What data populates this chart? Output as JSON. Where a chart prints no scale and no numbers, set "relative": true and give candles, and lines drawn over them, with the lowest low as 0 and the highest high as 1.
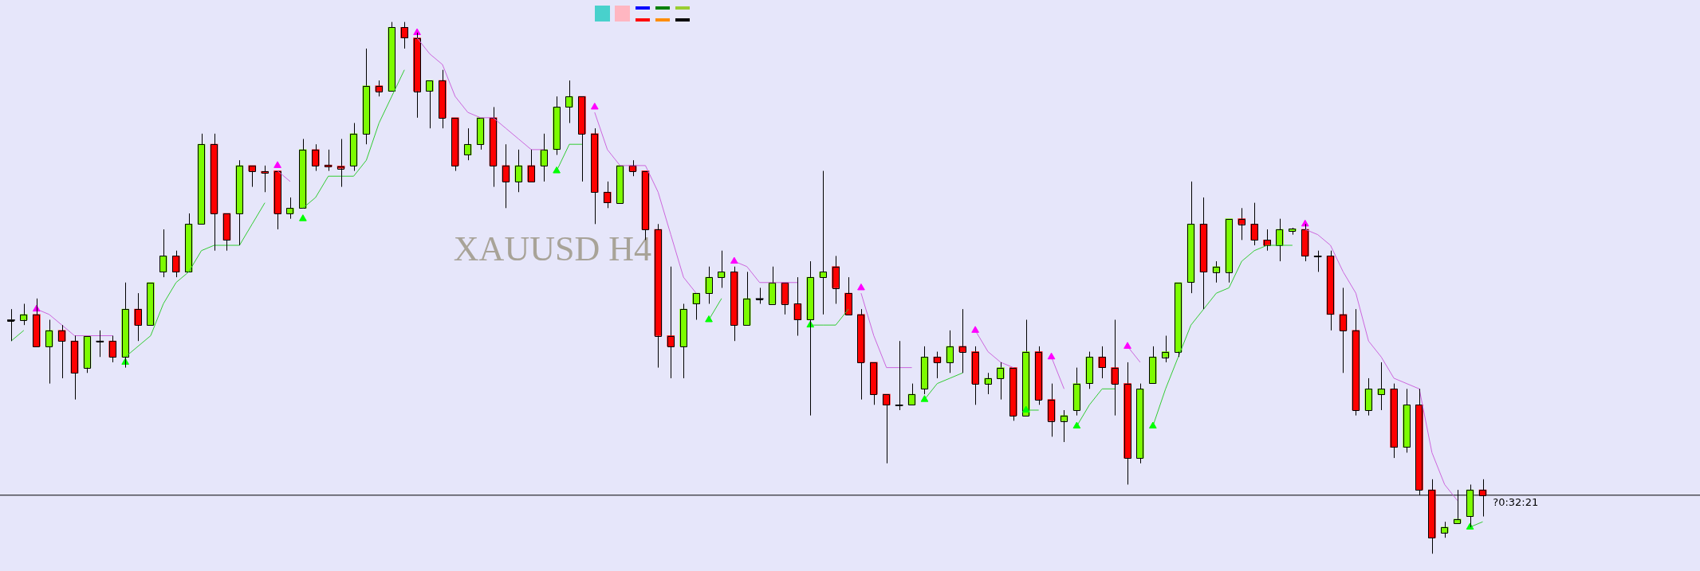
{
  "chart_data": {
    "type": "candlestick",
    "title": "XAUUSD H4",
    "relative": true,
    "categories": [
      null,
      null,
      null,
      null,
      null,
      null,
      null,
      null,
      null,
      null,
      null,
      null,
      null,
      null,
      null,
      null,
      null,
      null,
      null,
      null,
      null,
      null,
      null,
      null,
      null,
      null,
      null,
      null,
      null,
      null,
      null,
      null,
      null,
      null,
      null,
      null,
      null,
      null,
      null,
      null,
      null,
      null,
      null,
      null,
      null,
      null,
      null,
      null,
      null,
      null,
      null,
      null,
      null,
      null,
      null,
      null,
      null,
      null,
      null,
      null,
      null,
      null,
      null,
      null,
      null,
      null,
      null,
      null,
      null,
      null,
      null,
      null,
      null,
      null,
      null,
      null,
      null,
      null,
      null,
      null,
      null,
      null,
      null,
      null,
      null,
      null,
      null,
      null,
      null,
      null,
      null,
      null,
      null,
      null,
      null,
      null,
      null,
      null,
      null,
      null,
      null,
      null,
      null,
      null,
      null,
      null,
      null,
      null,
      null,
      null,
      null,
      null,
      null,
      null,
      null,
      null,
      null
    ],
    "ohlc": [
      [
        0.44,
        0.46,
        0.4,
        0.44
      ],
      [
        0.44,
        0.47,
        0.43,
        0.45
      ],
      [
        0.45,
        0.48,
        0.39,
        0.39
      ],
      [
        0.39,
        0.44,
        0.32,
        0.42
      ],
      [
        0.42,
        0.43,
        0.33,
        0.4
      ],
      [
        0.4,
        0.41,
        0.29,
        0.34
      ],
      [
        0.35,
        0.41,
        0.34,
        0.41
      ],
      [
        0.4,
        0.42,
        0.37,
        0.4
      ],
      [
        0.4,
        0.41,
        0.36,
        0.37
      ],
      [
        0.37,
        0.51,
        0.35,
        0.46
      ],
      [
        0.46,
        0.49,
        0.4,
        0.43
      ],
      [
        0.43,
        0.51,
        0.43,
        0.51
      ],
      [
        0.53,
        0.61,
        0.52,
        0.56
      ],
      [
        0.56,
        0.57,
        0.52,
        0.53
      ],
      [
        0.53,
        0.64,
        0.53,
        0.62
      ],
      [
        0.62,
        0.79,
        0.62,
        0.77
      ],
      [
        0.77,
        0.79,
        0.57,
        0.64
      ],
      [
        0.64,
        0.64,
        0.57,
        0.59
      ],
      [
        0.64,
        0.74,
        0.58,
        0.73
      ],
      [
        0.73,
        0.73,
        0.69,
        0.72
      ],
      [
        0.719,
        0.73,
        0.68,
        0.716
      ],
      [
        0.72,
        0.72,
        0.61,
        0.64
      ],
      [
        0.64,
        0.67,
        0.63,
        0.65
      ],
      [
        0.65,
        0.78,
        0.65,
        0.76
      ],
      [
        0.76,
        0.77,
        0.72,
        0.73
      ],
      [
        0.731,
        0.76,
        0.72,
        0.728
      ],
      [
        0.729,
        0.78,
        0.69,
        0.725
      ],
      [
        0.73,
        0.81,
        0.72,
        0.79
      ],
      [
        0.79,
        0.95,
        0.77,
        0.88
      ],
      [
        0.88,
        0.89,
        0.86,
        0.87
      ],
      [
        0.87,
        1,
        0.87,
        0.99
      ],
      [
        0.99,
        1,
        0.95,
        0.97
      ],
      [
        0.97,
        0.98,
        0.82,
        0.87
      ],
      [
        0.87,
        0.89,
        0.8,
        0.89
      ],
      [
        0.89,
        0.91,
        0.8,
        0.82
      ],
      [
        0.82,
        0.82,
        0.72,
        0.73
      ],
      [
        0.75,
        0.8,
        0.74,
        0.77
      ],
      [
        0.77,
        0.82,
        0.76,
        0.82
      ],
      [
        0.82,
        0.84,
        0.69,
        0.73
      ],
      [
        0.73,
        0.77,
        0.65,
        0.7
      ],
      [
        0.7,
        0.76,
        0.68,
        0.73
      ],
      [
        0.73,
        0.76,
        0.7,
        0.7
      ],
      [
        0.73,
        0.79,
        0.7,
        0.76
      ],
      [
        0.76,
        0.86,
        0.75,
        0.84
      ],
      [
        0.84,
        0.89,
        0.81,
        0.86
      ],
      [
        0.86,
        0.86,
        0.7,
        0.79
      ],
      [
        0.79,
        0.8,
        0.62,
        0.68
      ],
      [
        0.68,
        0.7,
        0.65,
        0.66
      ],
      [
        0.66,
        0.73,
        0.66,
        0.73
      ],
      [
        0.73,
        0.74,
        0.71,
        0.72
      ],
      [
        0.72,
        0.72,
        0.59,
        0.61
      ],
      [
        0.61,
        0.62,
        0.35,
        0.41
      ],
      [
        0.41,
        0.54,
        0.33,
        0.39
      ],
      [
        0.39,
        0.47,
        0.33,
        0.46
      ],
      [
        0.47,
        0.49,
        0.44,
        0.49
      ],
      [
        0.49,
        0.54,
        0.47,
        0.52
      ],
      [
        0.52,
        0.57,
        0.5,
        0.53
      ],
      [
        0.53,
        0.54,
        0.4,
        0.43
      ],
      [
        0.43,
        0.53,
        0.43,
        0.48
      ],
      [
        0.48,
        0.5,
        0.47,
        0.48
      ],
      [
        0.47,
        0.54,
        0.47,
        0.51
      ],
      [
        0.51,
        0.51,
        0.45,
        0.47
      ],
      [
        0.47,
        0.52,
        0.41,
        0.44
      ],
      [
        0.44,
        0.55,
        0.26,
        0.52
      ],
      [
        0.52,
        0.72,
        0.45,
        0.53
      ],
      [
        0.54,
        0.56,
        0.47,
        0.5
      ],
      [
        0.49,
        0.52,
        0.45,
        0.45
      ],
      [
        0.45,
        0.46,
        0.29,
        0.36
      ],
      [
        0.36,
        0.36,
        0.28,
        0.3
      ],
      [
        0.3,
        0.3,
        0.17,
        0.28
      ],
      [
        0.28,
        0.4,
        0.27,
        0.28
      ],
      [
        0.28,
        0.32,
        0.28,
        0.3
      ],
      [
        0.31,
        0.39,
        0.3,
        0.37
      ],
      [
        0.37,
        0.38,
        0.33,
        0.36
      ],
      [
        0.36,
        0.42,
        0.34,
        0.39
      ],
      [
        0.39,
        0.46,
        0.34,
        0.38
      ],
      [
        0.38,
        0.39,
        0.28,
        0.32
      ],
      [
        0.32,
        0.34,
        0.3,
        0.33
      ],
      [
        0.33,
        0.36,
        0.29,
        0.35
      ],
      [
        0.35,
        0.35,
        0.25,
        0.26
      ],
      [
        0.26,
        0.44,
        0.26,
        0.38
      ],
      [
        0.38,
        0.39,
        0.28,
        0.29
      ],
      [
        0.29,
        0.32,
        0.22,
        0.25
      ],
      [
        0.25,
        0.27,
        0.21,
        0.26
      ],
      [
        0.27,
        0.35,
        0.26,
        0.32
      ],
      [
        0.32,
        0.38,
        0.31,
        0.37
      ],
      [
        0.37,
        0.39,
        0.33,
        0.35
      ],
      [
        0.35,
        0.44,
        0.26,
        0.32
      ],
      [
        0.32,
        0.36,
        0.13,
        0.18
      ],
      [
        0.18,
        0.32,
        0.17,
        0.31
      ],
      [
        0.32,
        0.39,
        0.32,
        0.37
      ],
      [
        0.37,
        0.41,
        0.36,
        0.38
      ],
      [
        0.38,
        0.51,
        0.37,
        0.51
      ],
      [
        0.51,
        0.7,
        0.49,
        0.62
      ],
      [
        0.62,
        0.67,
        0.46,
        0.53
      ],
      [
        0.53,
        0.55,
        0.51,
        0.54
      ],
      [
        0.53,
        0.63,
        0.51,
        0.63
      ],
      [
        0.63,
        0.65,
        0.59,
        0.62
      ],
      [
        0.62,
        0.66,
        0.58,
        0.59
      ],
      [
        0.59,
        0.61,
        0.57,
        0.58
      ],
      [
        0.58,
        0.63,
        0.55,
        0.61
      ],
      [
        0.607,
        0.613,
        0.6,
        0.611
      ],
      [
        0.61,
        0.62,
        0.55,
        0.56
      ],
      [
        0.56,
        0.57,
        0.53,
        0.56
      ],
      [
        0.56,
        0.57,
        0.42,
        0.45
      ],
      [
        0.45,
        0.5,
        0.34,
        0.42
      ],
      [
        0.42,
        0.46,
        0.26,
        0.27
      ],
      [
        0.27,
        0.33,
        0.26,
        0.31
      ],
      [
        0.3,
        0.36,
        0.27,
        0.31
      ],
      [
        0.31,
        0.32,
        0.18,
        0.2
      ],
      [
        0.2,
        0.31,
        0.19,
        0.28
      ],
      [
        0.28,
        0.31,
        0.11,
        0.12
      ],
      [
        0.12,
        0.14,
        0,
        0.03
      ],
      [
        0.04,
        0.06,
        0.03,
        0.05
      ],
      [
        0.058,
        0.12,
        0.058,
        0.065
      ],
      [
        0.07,
        0.13,
        0.05,
        0.12
      ],
      [
        0.12,
        0.14,
        0.07,
        0.11
      ]
    ],
    "colors": [
      "#000000",
      "#7cfc00",
      "#ff0000",
      "#7cfc00",
      "#ff0000",
      "#ff0000",
      "#7cfc00",
      "#000000",
      "#ff0000",
      "#7cfc00",
      "#ff0000",
      "#7cfc00",
      "#7cfc00",
      "#ff0000",
      "#7cfc00",
      "#7cfc00",
      "#ff0000",
      "#ff0000",
      "#7cfc00",
      "#ff0000",
      "#ff0000",
      "#ff0000",
      "#7cfc00",
      "#7cfc00",
      "#ff0000",
      "#ff0000",
      "#ff0000",
      "#7cfc00",
      "#7cfc00",
      "#ff0000",
      "#7cfc00",
      "#ff0000",
      "#ff0000",
      "#7cfc00",
      "#ff0000",
      "#ff0000",
      "#7cfc00",
      "#7cfc00",
      "#ff0000",
      "#ff0000",
      "#7cfc00",
      "#ff0000",
      "#7cfc00",
      "#7cfc00",
      "#7cfc00",
      "#ff0000",
      "#ff0000",
      "#ff0000",
      "#7cfc00",
      "#ff0000",
      "#ff0000",
      "#ff0000",
      "#ff0000",
      "#7cfc00",
      "#7cfc00",
      "#7cfc00",
      "#7cfc00",
      "#ff0000",
      "#7cfc00",
      "#000000",
      "#7cfc00",
      "#ff0000",
      "#ff0000",
      "#7cfc00",
      "#7cfc00",
      "#ff0000",
      "#ff0000",
      "#ff0000",
      "#ff0000",
      "#ff0000",
      "#000000",
      "#7cfc00",
      "#7cfc00",
      "#ff0000",
      "#7cfc00",
      "#ff0000",
      "#ff0000",
      "#7cfc00",
      "#7cfc00",
      "#ff0000",
      "#7cfc00",
      "#ff0000",
      "#ff0000",
      "#7cfc00",
      "#7cfc00",
      "#7cfc00",
      "#ff0000",
      "#ff0000",
      "#ff0000",
      "#7cfc00",
      "#7cfc00",
      "#7cfc00",
      "#7cfc00",
      "#7cfc00",
      "#ff0000",
      "#7cfc00",
      "#7cfc00",
      "#ff0000",
      "#ff0000",
      "#ff0000",
      "#7cfc00",
      "#7cfc00",
      "#ff0000",
      "#000000",
      "#ff0000",
      "#ff0000",
      "#ff0000",
      "#7cfc00",
      "#7cfc00",
      "#ff0000",
      "#7cfc00",
      "#ff0000",
      "#ff0000",
      "#7cfc00",
      "#7cfc00",
      "#7cfc00",
      "#ff0000"
    ],
    "series": [
      {
        "type": "line",
        "color": "#33cc33",
        "values": [
          0.4,
          0.42,
          null,
          null,
          null,
          null,
          null,
          null,
          null,
          0.37,
          0.39,
          0.41,
          0.47,
          0.51,
          0.53,
          0.57,
          0.58,
          0.58,
          0.58,
          0.62,
          0.66,
          null,
          null,
          0.65,
          0.67,
          0.71,
          0.71,
          0.71,
          0.74,
          0.81,
          0.86,
          0.91,
          null,
          null,
          null,
          null,
          null,
          null,
          null,
          null,
          null,
          null,
          null,
          0.72,
          0.77,
          0.77,
          null,
          null,
          null,
          null,
          null,
          null,
          null,
          null,
          null,
          0.44,
          0.48,
          null,
          null,
          null,
          null,
          null,
          null,
          0.43,
          0.43,
          0.43,
          0.46,
          null,
          null,
          null,
          null,
          null,
          0.29,
          0.32,
          0.33,
          0.34,
          null,
          null,
          null,
          null,
          0.27,
          0.27,
          null,
          null,
          0.24,
          0.28,
          0.31,
          0.31,
          null,
          null,
          0.24,
          0.31,
          0.37,
          0.43,
          0.46,
          0.49,
          0.5,
          0.55,
          0.57,
          0.58,
          0.58,
          0.58,
          null,
          null,
          null,
          null,
          null,
          null,
          null,
          null,
          null,
          null,
          null,
          null,
          null,
          0.05,
          0.06
        ]
      },
      {
        "type": "line",
        "color": "#cc66dd",
        "values": [
          null,
          null,
          0.46,
          0.45,
          0.43,
          0.41,
          0.41,
          0.41,
          0.41,
          null,
          null,
          null,
          null,
          null,
          null,
          null,
          null,
          null,
          null,
          null,
          null,
          0.72,
          0.7,
          null,
          null,
          null,
          null,
          null,
          null,
          null,
          null,
          null,
          0.97,
          0.94,
          0.92,
          0.86,
          0.83,
          0.82,
          0.82,
          0.8,
          0.78,
          0.76,
          0.76,
          null,
          null,
          null,
          0.83,
          0.76,
          0.73,
          0.73,
          0.73,
          0.68,
          0.6,
          0.52,
          0.49,
          null,
          null,
          0.55,
          0.54,
          0.51,
          0.51,
          0.51,
          0.51,
          null,
          null,
          null,
          null,
          0.49,
          0.41,
          0.35,
          0.35,
          0.35,
          null,
          null,
          null,
          null,
          0.42,
          0.38,
          0.36,
          0.35,
          null,
          null,
          0.37,
          0.31,
          null,
          null,
          null,
          null,
          0.39,
          0.36,
          null,
          null,
          null,
          null,
          null,
          null,
          null,
          null,
          null,
          null,
          null,
          null,
          0.61,
          0.6,
          0.58,
          0.53,
          0.49,
          0.4,
          0.37,
          0.33,
          0.32,
          0.31,
          0.19,
          0.13,
          0.1,
          null,
          null
        ]
      },
      {
        "type": "scatter",
        "color": "#ff00ff",
        "marker": "triangle",
        "values": [
          null,
          null,
          0.46,
          null,
          null,
          null,
          null,
          null,
          null,
          null,
          null,
          null,
          null,
          null,
          null,
          null,
          null,
          null,
          null,
          null,
          null,
          0.73,
          null,
          null,
          null,
          null,
          null,
          null,
          null,
          null,
          null,
          null,
          0.98,
          null,
          null,
          null,
          null,
          null,
          null,
          null,
          null,
          null,
          null,
          null,
          null,
          null,
          0.84,
          null,
          null,
          null,
          null,
          null,
          null,
          null,
          null,
          null,
          null,
          0.55,
          null,
          null,
          null,
          null,
          null,
          null,
          null,
          null,
          null,
          0.5,
          null,
          null,
          null,
          null,
          null,
          null,
          null,
          null,
          0.42,
          null,
          null,
          null,
          null,
          null,
          0.37,
          null,
          null,
          null,
          null,
          null,
          0.39,
          null,
          null,
          null,
          null,
          null,
          null,
          null,
          null,
          null,
          null,
          null,
          null,
          null,
          0.62,
          null,
          null,
          null,
          null,
          null,
          null,
          null,
          null,
          null,
          null,
          null,
          null,
          null,
          null
        ]
      },
      {
        "type": "scatter",
        "color": "#00ff00",
        "marker": "triangle",
        "values": [
          null,
          null,
          null,
          null,
          null,
          null,
          null,
          null,
          null,
          0.36,
          null,
          null,
          null,
          null,
          null,
          null,
          null,
          null,
          null,
          null,
          null,
          null,
          null,
          0.63,
          null,
          null,
          null,
          null,
          null,
          null,
          null,
          null,
          null,
          null,
          null,
          null,
          null,
          null,
          null,
          null,
          null,
          null,
          null,
          0.72,
          null,
          null,
          null,
          null,
          null,
          null,
          null,
          null,
          null,
          null,
          null,
          0.44,
          null,
          null,
          null,
          null,
          null,
          null,
          null,
          0.43,
          null,
          null,
          null,
          null,
          null,
          null,
          null,
          null,
          0.29,
          null,
          null,
          null,
          null,
          null,
          null,
          null,
          0.27,
          null,
          null,
          null,
          0.24,
          null,
          null,
          null,
          null,
          null,
          0.24,
          null,
          null,
          null,
          null,
          null,
          null,
          null,
          null,
          null,
          null,
          null,
          null,
          null,
          null,
          null,
          null,
          null,
          null,
          null,
          null,
          null,
          null,
          null,
          null,
          0.05,
          null
        ]
      }
    ],
    "ref_lines": [
      {
        "axis": "y",
        "value": 0.11,
        "label": "?0:32:21",
        "color": "#000000"
      }
    ]
  }
}
